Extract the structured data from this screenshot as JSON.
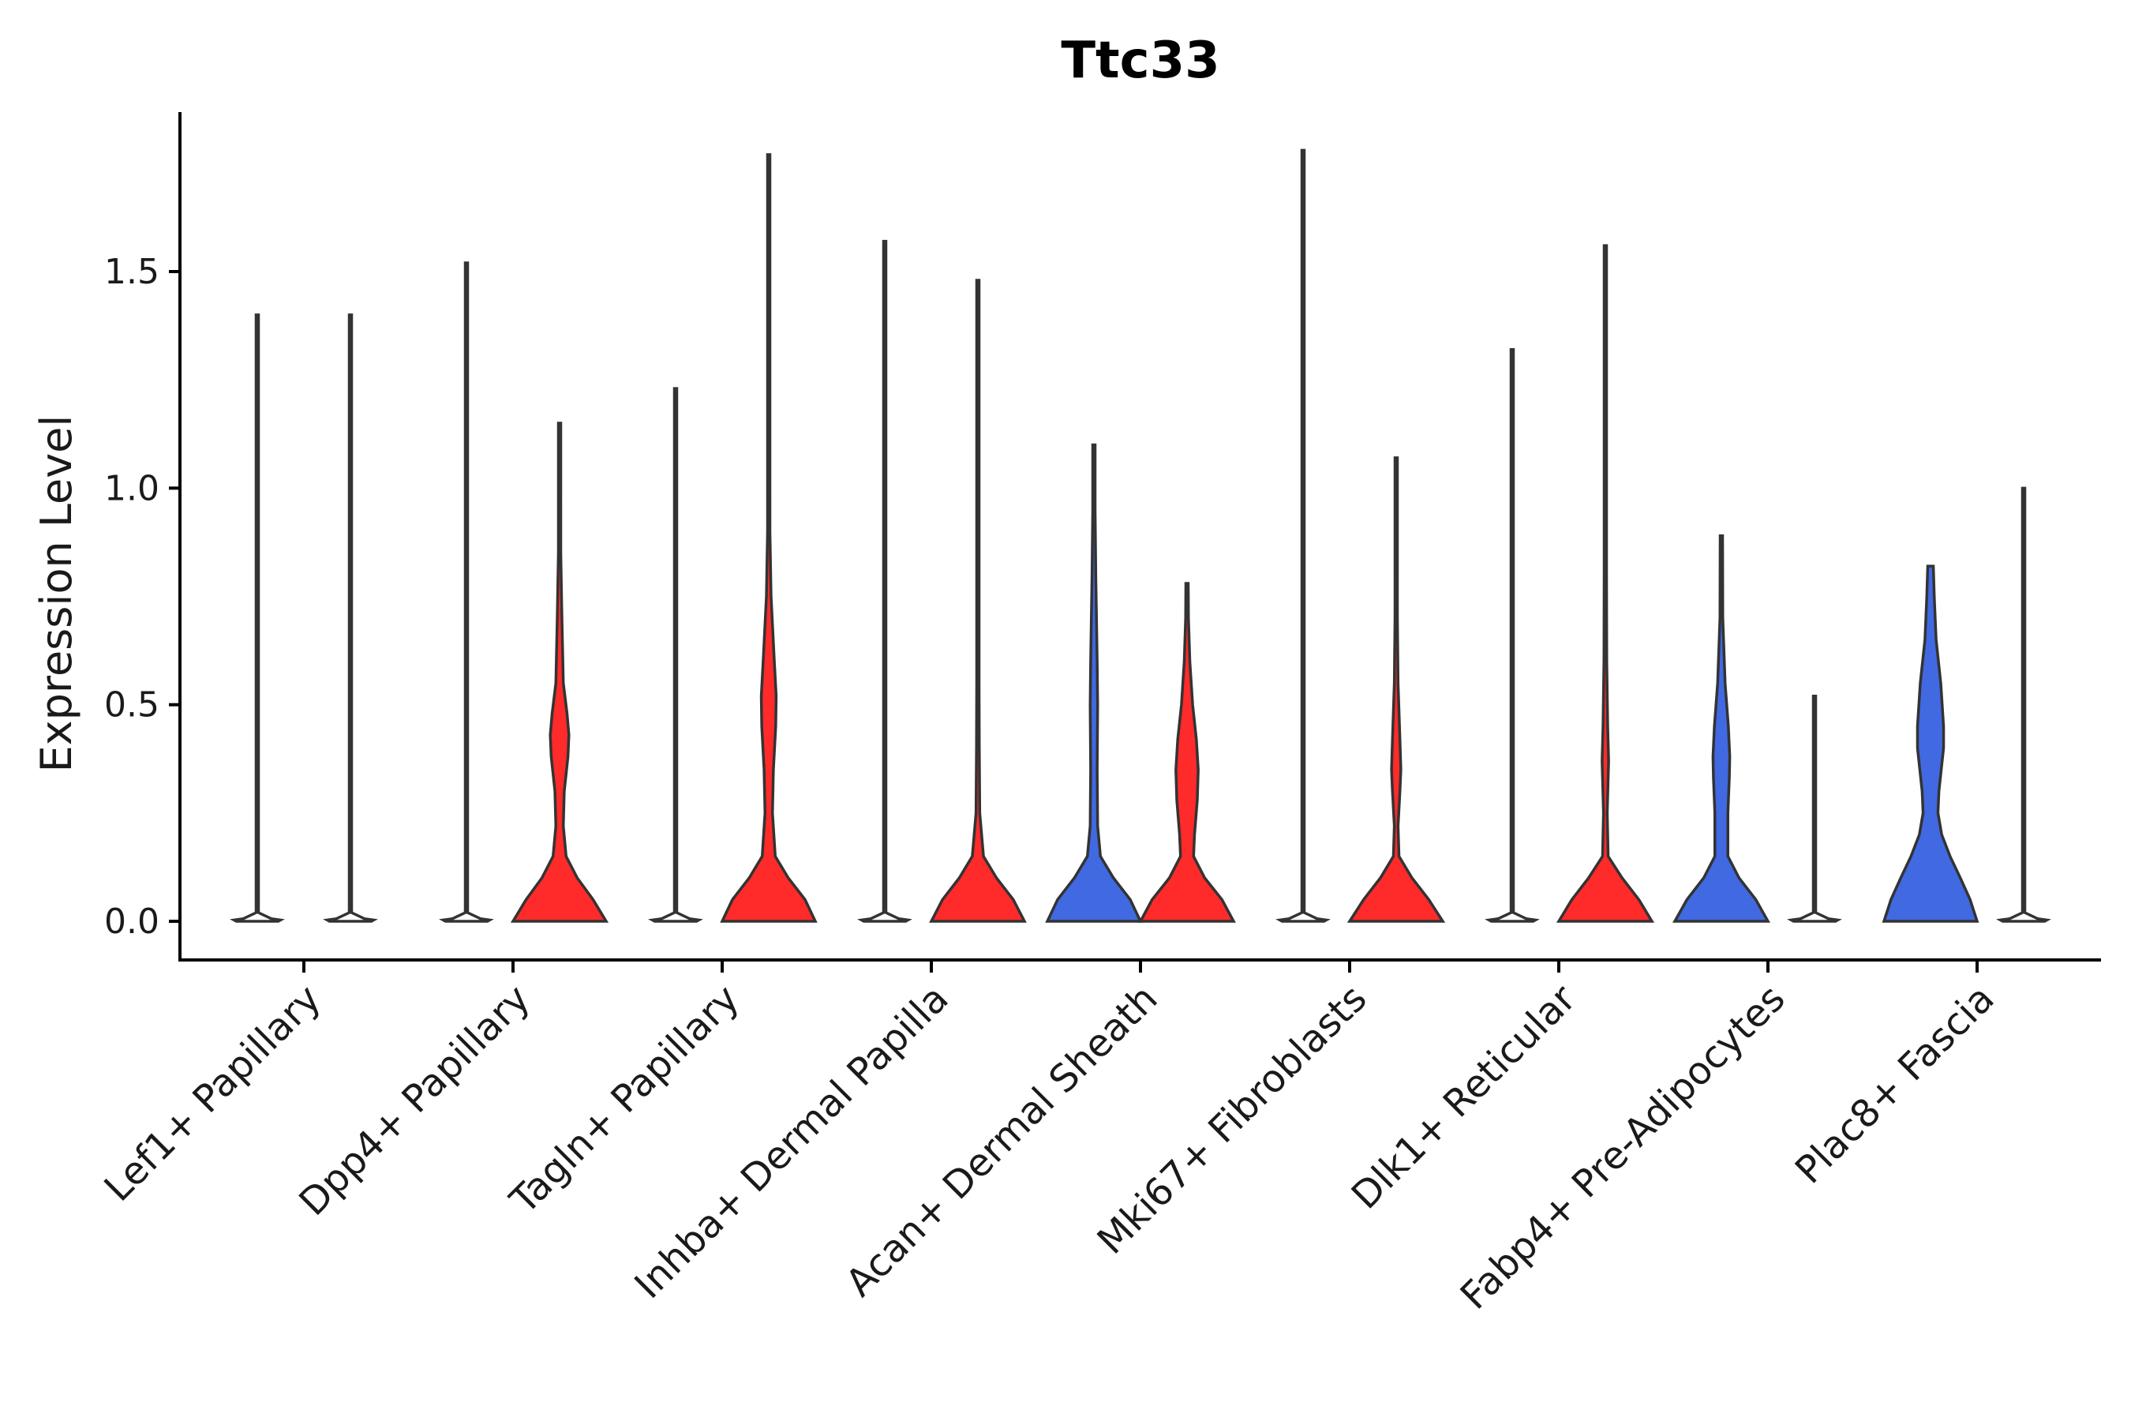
{
  "chart_data": {
    "type": "violin",
    "title": "Ttc33",
    "ylabel": "Expression Level",
    "xlabel": "",
    "ylim": [
      -0.09,
      1.86
    ],
    "yticks": [
      0.0,
      0.5,
      1.0,
      1.5
    ],
    "ytick_labels": [
      "0.0",
      "0.5",
      "1.0",
      "1.5"
    ],
    "series_colors": {
      "red": "#ff2a2a",
      "blue": "#4169e1"
    },
    "categories": [
      "Lef1+ Papillary",
      "Dpp4+ Papillary",
      "Tagln+ Papillary",
      "Inhba+ Dermal Papilla",
      "Acan+ Dermal Sheath",
      "Mki67+ Fibroblasts",
      "Dlk1+ Reticular",
      "Fabp4+ Pre-Adipocytes",
      "Plac8+ Fascia"
    ],
    "violins": [
      {
        "category": 0,
        "split": "left",
        "color": "none",
        "max": 1.4,
        "profile": [
          [
            0,
            0.45
          ],
          [
            0.003,
            0.5
          ],
          [
            0.006,
            0.3
          ],
          [
            0.02,
            0.01
          ],
          [
            1.4,
            0.01
          ]
        ]
      },
      {
        "category": 0,
        "split": "right",
        "color": "none",
        "max": 1.4,
        "profile": [
          [
            0,
            0.45
          ],
          [
            0.003,
            0.5
          ],
          [
            0.006,
            0.3
          ],
          [
            0.02,
            0.01
          ],
          [
            1.4,
            0.01
          ]
        ]
      },
      {
        "category": 1,
        "split": "left",
        "color": "none",
        "max": 1.52,
        "profile": [
          [
            0,
            0.45
          ],
          [
            0.003,
            0.5
          ],
          [
            0.006,
            0.3
          ],
          [
            0.02,
            0.01
          ],
          [
            1.52,
            0.01
          ]
        ]
      },
      {
        "category": 1,
        "split": "right",
        "color": "red",
        "max": 1.15,
        "profile": [
          [
            0,
            1.0
          ],
          [
            0.05,
            0.72
          ],
          [
            0.1,
            0.38
          ],
          [
            0.15,
            0.14
          ],
          [
            0.22,
            0.08
          ],
          [
            0.3,
            0.1
          ],
          [
            0.38,
            0.18
          ],
          [
            0.43,
            0.2
          ],
          [
            0.48,
            0.16
          ],
          [
            0.55,
            0.08
          ],
          [
            0.7,
            0.05
          ],
          [
            0.85,
            0.02
          ],
          [
            1.0,
            0.01
          ],
          [
            1.15,
            0.01
          ]
        ]
      },
      {
        "category": 2,
        "split": "left",
        "color": "none",
        "max": 1.23,
        "profile": [
          [
            0,
            0.45
          ],
          [
            0.003,
            0.5
          ],
          [
            0.006,
            0.3
          ],
          [
            0.02,
            0.01
          ],
          [
            1.23,
            0.01
          ]
        ]
      },
      {
        "category": 2,
        "split": "right",
        "color": "red",
        "max": 1.77,
        "profile": [
          [
            0,
            1.0
          ],
          [
            0.05,
            0.78
          ],
          [
            0.1,
            0.42
          ],
          [
            0.15,
            0.14
          ],
          [
            0.25,
            0.08
          ],
          [
            0.35,
            0.1
          ],
          [
            0.45,
            0.15
          ],
          [
            0.52,
            0.16
          ],
          [
            0.6,
            0.12
          ],
          [
            0.75,
            0.05
          ],
          [
            0.9,
            0.02
          ],
          [
            1.1,
            0.01
          ],
          [
            1.77,
            0.01
          ]
        ]
      },
      {
        "category": 3,
        "split": "left",
        "color": "none",
        "max": 1.57,
        "profile": [
          [
            0,
            0.45
          ],
          [
            0.003,
            0.5
          ],
          [
            0.006,
            0.3
          ],
          [
            0.02,
            0.01
          ],
          [
            1.57,
            0.01
          ]
        ]
      },
      {
        "category": 3,
        "split": "right",
        "color": "red",
        "max": 1.48,
        "profile": [
          [
            0,
            1.0
          ],
          [
            0.05,
            0.76
          ],
          [
            0.1,
            0.4
          ],
          [
            0.15,
            0.12
          ],
          [
            0.25,
            0.04
          ],
          [
            0.4,
            0.03
          ],
          [
            0.55,
            0.02
          ],
          [
            0.8,
            0.01
          ],
          [
            1.48,
            0.01
          ]
        ]
      },
      {
        "category": 4,
        "split": "left",
        "color": "blue",
        "max": 1.1,
        "profile": [
          [
            0,
            1.0
          ],
          [
            0.05,
            0.78
          ],
          [
            0.1,
            0.42
          ],
          [
            0.15,
            0.14
          ],
          [
            0.22,
            0.08
          ],
          [
            0.35,
            0.07
          ],
          [
            0.5,
            0.08
          ],
          [
            0.6,
            0.07
          ],
          [
            0.8,
            0.04
          ],
          [
            0.95,
            0.02
          ],
          [
            1.1,
            0.01
          ]
        ]
      },
      {
        "category": 4,
        "split": "right",
        "color": "red",
        "max": 0.78,
        "profile": [
          [
            0,
            1.0
          ],
          [
            0.05,
            0.75
          ],
          [
            0.1,
            0.38
          ],
          [
            0.15,
            0.14
          ],
          [
            0.2,
            0.16
          ],
          [
            0.28,
            0.22
          ],
          [
            0.35,
            0.24
          ],
          [
            0.42,
            0.2
          ],
          [
            0.5,
            0.12
          ],
          [
            0.6,
            0.06
          ],
          [
            0.7,
            0.03
          ],
          [
            0.78,
            0.01
          ]
        ]
      },
      {
        "category": 5,
        "split": "left",
        "color": "none",
        "max": 1.78,
        "profile": [
          [
            0,
            0.45
          ],
          [
            0.003,
            0.5
          ],
          [
            0.006,
            0.3
          ],
          [
            0.02,
            0.01
          ],
          [
            1.78,
            0.01
          ]
        ]
      },
      {
        "category": 5,
        "split": "right",
        "color": "red",
        "max": 1.07,
        "profile": [
          [
            0,
            1.0
          ],
          [
            0.05,
            0.7
          ],
          [
            0.1,
            0.34
          ],
          [
            0.15,
            0.06
          ],
          [
            0.22,
            0.04
          ],
          [
            0.3,
            0.08
          ],
          [
            0.35,
            0.1
          ],
          [
            0.42,
            0.08
          ],
          [
            0.55,
            0.04
          ],
          [
            0.7,
            0.02
          ],
          [
            0.85,
            0.01
          ],
          [
            1.07,
            0.01
          ]
        ]
      },
      {
        "category": 6,
        "split": "left",
        "color": "none",
        "max": 1.32,
        "profile": [
          [
            0,
            0.45
          ],
          [
            0.003,
            0.5
          ],
          [
            0.006,
            0.3
          ],
          [
            0.02,
            0.01
          ],
          [
            1.32,
            0.01
          ]
        ]
      },
      {
        "category": 6,
        "split": "right",
        "color": "red",
        "max": 1.56,
        "profile": [
          [
            0,
            1.0
          ],
          [
            0.05,
            0.72
          ],
          [
            0.1,
            0.36
          ],
          [
            0.15,
            0.06
          ],
          [
            0.25,
            0.04
          ],
          [
            0.33,
            0.06
          ],
          [
            0.37,
            0.07
          ],
          [
            0.45,
            0.05
          ],
          [
            0.6,
            0.03
          ],
          [
            0.8,
            0.02
          ],
          [
            1.0,
            0.01
          ],
          [
            1.56,
            0.01
          ]
        ]
      },
      {
        "category": 7,
        "split": "left",
        "color": "blue",
        "max": 0.89,
        "profile": [
          [
            0,
            1.0
          ],
          [
            0.05,
            0.74
          ],
          [
            0.1,
            0.38
          ],
          [
            0.15,
            0.14
          ],
          [
            0.25,
            0.14
          ],
          [
            0.33,
            0.17
          ],
          [
            0.38,
            0.18
          ],
          [
            0.45,
            0.15
          ],
          [
            0.55,
            0.08
          ],
          [
            0.7,
            0.03
          ],
          [
            0.89,
            0.01
          ]
        ]
      },
      {
        "category": 7,
        "split": "right",
        "color": "none",
        "max": 0.52,
        "profile": [
          [
            0,
            0.45
          ],
          [
            0.003,
            0.5
          ],
          [
            0.006,
            0.3
          ],
          [
            0.02,
            0.02
          ],
          [
            0.2,
            0.02
          ],
          [
            0.52,
            0.02
          ]
        ]
      },
      {
        "category": 8,
        "split": "left",
        "color": "blue",
        "max": 0.82,
        "profile": [
          [
            0,
            1.0
          ],
          [
            0.05,
            0.85
          ],
          [
            0.1,
            0.64
          ],
          [
            0.15,
            0.42
          ],
          [
            0.2,
            0.24
          ],
          [
            0.25,
            0.16
          ],
          [
            0.3,
            0.18
          ],
          [
            0.4,
            0.28
          ],
          [
            0.45,
            0.28
          ],
          [
            0.55,
            0.22
          ],
          [
            0.65,
            0.12
          ],
          [
            0.75,
            0.08
          ],
          [
            0.82,
            0.06
          ]
        ]
      },
      {
        "category": 8,
        "split": "right",
        "color": "none",
        "max": 1.0,
        "profile": [
          [
            0,
            0.45
          ],
          [
            0.003,
            0.5
          ],
          [
            0.006,
            0.3
          ],
          [
            0.02,
            0.01
          ],
          [
            1.0,
            0.01
          ]
        ]
      }
    ]
  }
}
